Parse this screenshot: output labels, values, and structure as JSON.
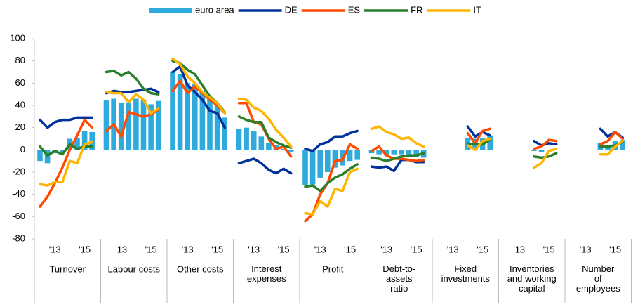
{
  "chart_data": {
    "type": "panel-bar-line",
    "groups": [
      "Turnover",
      "Labour costs",
      "Other costs",
      "Interest\nexpenses",
      "Profit",
      "Debt-to-\nassets\nratio",
      "Fixed\ninvestments",
      "Inventories\nand working\ncapital",
      "Number\nof\nemployees"
    ],
    "periods": [
      null,
      null,
      "'13",
      null,
      null,
      null,
      "'15",
      null
    ],
    "ylim": [
      -80,
      100
    ],
    "yticks": [
      -80,
      -60,
      -40,
      -20,
      0,
      20,
      40,
      60,
      80,
      100
    ],
    "series": [
      {
        "name": "euro area",
        "color": "#2eaadc",
        "kind": "bar",
        "values": [
          [
            -10,
            -12,
            -3,
            -2,
            10,
            11,
            17,
            16
          ],
          [
            45,
            46,
            42,
            42,
            46,
            45,
            41,
            44
          ],
          [
            70,
            68,
            60,
            59,
            53,
            46,
            40,
            29
          ],
          [
            19,
            20,
            17,
            12,
            6,
            4,
            1,
            -2
          ],
          [
            -32,
            -31,
            -25,
            -20,
            -16,
            -14,
            -10,
            -9
          ],
          [
            -3,
            -4,
            -5,
            -4,
            -4,
            -5,
            -6,
            -7
          ],
          [
            null,
            null,
            null,
            null,
            11,
            10,
            11,
            13
          ],
          [
            null,
            null,
            null,
            null,
            -1,
            -2,
            0,
            0
          ],
          [
            null,
            null,
            null,
            null,
            6,
            4,
            8,
            9
          ]
        ]
      },
      {
        "name": "DE",
        "color": "#003299",
        "kind": "line",
        "values": [
          [
            27,
            20,
            25,
            27,
            27,
            29,
            29,
            29
          ],
          [
            51,
            53,
            52,
            52,
            53,
            54,
            55,
            52
          ],
          [
            70,
            75,
            58,
            52,
            45,
            35,
            33,
            20
          ],
          [
            -12,
            -10,
            -8,
            -12,
            -18,
            -21,
            -17,
            -21
          ],
          [
            1,
            -1,
            5,
            7,
            12,
            12,
            15,
            17
          ],
          [
            -15,
            -16,
            -15,
            -19,
            -9,
            -9,
            -11,
            -11
          ],
          [
            null,
            null,
            null,
            null,
            21,
            12,
            16,
            13
          ],
          [
            null,
            null,
            null,
            null,
            8,
            4,
            6,
            5
          ],
          [
            null,
            null,
            null,
            null,
            19,
            12,
            16,
            11
          ]
        ]
      },
      {
        "name": "ES",
        "color": "#ff4b00",
        "kind": "line",
        "values": [
          [
            -51,
            -42,
            -30,
            -16,
            0,
            13,
            27,
            20
          ],
          [
            17,
            23,
            12,
            34,
            32,
            30,
            32,
            36
          ],
          [
            53,
            62,
            51,
            57,
            51,
            45,
            40,
            33
          ],
          [
            42,
            42,
            25,
            23,
            10,
            1,
            3,
            -6
          ],
          [
            -64,
            -58,
            -40,
            -30,
            -10,
            -9,
            5,
            1
          ],
          [
            -1,
            3,
            -5,
            -8,
            -8,
            -9,
            -10,
            -9
          ],
          [
            null,
            null,
            null,
            null,
            15,
            6,
            17,
            19
          ],
          [
            null,
            null,
            null,
            null,
            1,
            3,
            9,
            8
          ],
          [
            null,
            null,
            null,
            null,
            5,
            8,
            16,
            10
          ]
        ]
      },
      {
        "name": "FR",
        "color": "#2a7f2a",
        "kind": "line",
        "values": [
          [
            3,
            -5,
            -1,
            -4,
            5,
            1,
            3,
            3
          ],
          [
            70,
            71,
            67,
            70,
            64,
            55,
            51,
            50
          ],
          [
            80,
            78,
            72,
            68,
            58,
            48,
            42,
            34
          ],
          [
            30,
            27,
            25,
            25,
            11,
            7,
            4,
            2
          ],
          [
            -33,
            -32,
            -37,
            -30,
            -25,
            -22,
            -17,
            -13
          ],
          [
            -7,
            -8,
            -10,
            -8,
            -6,
            -5,
            -5,
            -3
          ],
          [
            null,
            null,
            null,
            null,
            5,
            5,
            5,
            9
          ],
          [
            null,
            null,
            null,
            null,
            -6,
            -7,
            -6,
            -3
          ],
          [
            null,
            null,
            null,
            null,
            3,
            3,
            4,
            7
          ]
        ]
      },
      {
        "name": "IT",
        "color": "#ffb400",
        "kind": "line",
        "values": [
          [
            -31,
            -32,
            -29,
            -29,
            -10,
            -12,
            5,
            7
          ],
          [
            52,
            51,
            51,
            43,
            50,
            45,
            33,
            37
          ],
          [
            82,
            77,
            66,
            60,
            52,
            47,
            42,
            33
          ],
          [
            46,
            45,
            38,
            35,
            28,
            18,
            11,
            3
          ],
          [
            -57,
            -58,
            -46,
            -51,
            -35,
            -37,
            -20,
            -17
          ],
          [
            19,
            21,
            16,
            14,
            10,
            11,
            6,
            3
          ],
          [
            null,
            null,
            null,
            null,
            4,
            0,
            8,
            10
          ],
          [
            null,
            null,
            null,
            null,
            -16,
            -12,
            -1,
            1
          ],
          [
            null,
            null,
            null,
            null,
            -4,
            -4,
            3,
            8
          ]
        ]
      }
    ]
  }
}
